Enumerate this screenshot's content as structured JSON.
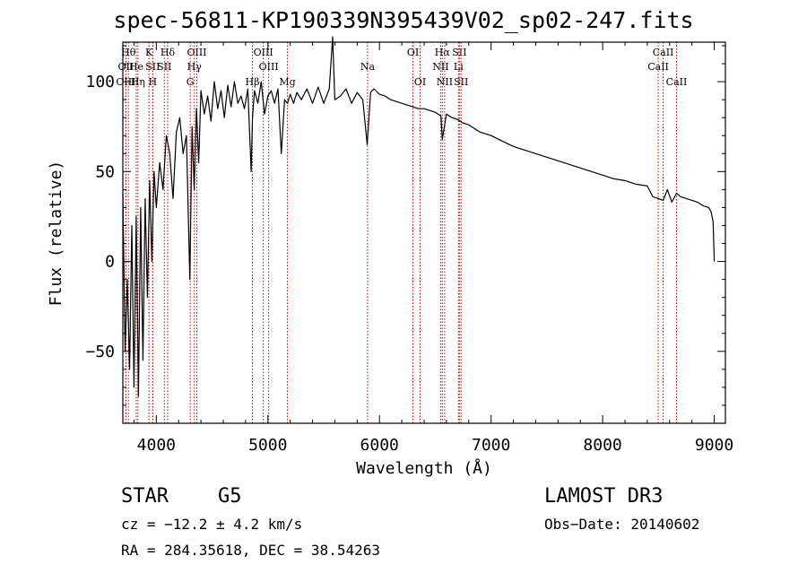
{
  "title": "spec-56811-KP190339N395439V02_sp02-247.fits",
  "info": {
    "object_class": "STAR",
    "subclass": "G5",
    "survey": "LAMOST DR3",
    "cz": "cz = −12.2 ± 4.2 km/s",
    "obs_date": "Obs−Date: 20140602",
    "coords": "RA = 284.35618, DEC =  38.54263"
  },
  "chart_data": {
    "type": "line",
    "title": "spec-56811-KP190339N395439V02_sp02-247.fits",
    "xlabel": "Wavelength (Å)",
    "ylabel": "Flux (relative)",
    "xlim": [
      3700,
      9100
    ],
    "ylim": [
      -90,
      122
    ],
    "xticks": [
      4000,
      5000,
      6000,
      7000,
      8000,
      9000
    ],
    "xtick_labels": [
      "4000",
      "5000",
      "6000",
      "7000",
      "8000",
      "9000"
    ],
    "yticks": [
      -50,
      0,
      50,
      100
    ],
    "ytick_labels": [
      "−50",
      "0",
      "50",
      "100"
    ],
    "line_color": "#000000",
    "marker_color": "#cc0000",
    "series": [
      {
        "name": "flux",
        "x": [
          3700,
          3720,
          3740,
          3760,
          3780,
          3800,
          3820,
          3840,
          3860,
          3880,
          3900,
          3920,
          3940,
          3960,
          3980,
          4000,
          4030,
          4060,
          4090,
          4120,
          4150,
          4180,
          4210,
          4240,
          4270,
          4300,
          4320,
          4340,
          4360,
          4380,
          4400,
          4430,
          4460,
          4490,
          4520,
          4550,
          4580,
          4610,
          4640,
          4670,
          4700,
          4730,
          4760,
          4790,
          4820,
          4850,
          4862,
          4880,
          4910,
          4940,
          4970,
          5000,
          5030,
          5060,
          5090,
          5120,
          5150,
          5175,
          5200,
          5230,
          5260,
          5300,
          5350,
          5400,
          5450,
          5500,
          5550,
          5580,
          5600,
          5650,
          5700,
          5750,
          5800,
          5850,
          5890,
          5920,
          5950,
          6000,
          6050,
          6100,
          6150,
          6200,
          6250,
          6300,
          6350,
          6400,
          6450,
          6500,
          6550,
          6563,
          6600,
          6650,
          6700,
          6750,
          6800,
          6850,
          6900,
          6950,
          7000,
          7100,
          7200,
          7300,
          7400,
          7500,
          7600,
          7700,
          7800,
          7900,
          8000,
          8100,
          8200,
          8300,
          8400,
          8450,
          8500,
          8542,
          8580,
          8620,
          8662,
          8700,
          8750,
          8800,
          8850,
          8900,
          8950,
          8970,
          8990,
          9000
        ],
        "values": [
          38,
          -50,
          -10,
          -60,
          20,
          -70,
          25,
          -75,
          30,
          -55,
          35,
          -20,
          45,
          0,
          50,
          30,
          55,
          40,
          70,
          60,
          35,
          72,
          80,
          60,
          70,
          -10,
          75,
          40,
          85,
          55,
          95,
          82,
          92,
          78,
          100,
          85,
          95,
          80,
          98,
          86,
          100,
          88,
          92,
          85,
          96,
          50,
          80,
          95,
          88,
          100,
          82,
          92,
          95,
          88,
          96,
          60,
          90,
          88,
          93,
          88,
          94,
          90,
          96,
          88,
          97,
          88,
          96,
          125,
          90,
          92,
          96,
          88,
          94,
          90,
          65,
          94,
          96,
          93,
          92,
          90,
          89,
          88,
          87,
          86,
          85,
          85,
          84,
          83,
          81,
          68,
          82,
          80,
          79,
          77,
          76,
          74,
          72,
          71,
          70,
          67,
          64,
          62,
          60,
          58,
          56,
          54,
          52,
          50,
          48,
          46,
          45,
          43,
          42,
          36,
          35,
          34,
          40,
          33,
          38,
          36,
          35,
          34,
          33,
          31,
          30,
          28,
          22,
          0
        ]
      }
    ],
    "line_markers": [
      {
        "label": "Hθ",
        "wavelength": 3750,
        "row": 1
      },
      {
        "label": "OII",
        "wavelength": 3727,
        "row": 2
      },
      {
        "label": "OIII",
        "wavelength": 3727,
        "row": 3
      },
      {
        "label": "He",
        "wavelength": 3820,
        "row": 2
      },
      {
        "label": "Hη",
        "wavelength": 3835,
        "row": 3
      },
      {
        "label": "K",
        "wavelength": 3934,
        "row": 1
      },
      {
        "label": "SII",
        "wavelength": 3968,
        "row": 2
      },
      {
        "label": "H",
        "wavelength": 3968,
        "row": 3
      },
      {
        "label": "Hδ",
        "wavelength": 4102,
        "row": 1
      },
      {
        "label": "SII",
        "wavelength": 4072,
        "row": 2
      },
      {
        "label": "OIII",
        "wavelength": 4363,
        "row": 1
      },
      {
        "label": "Hγ",
        "wavelength": 4341,
        "row": 2
      },
      {
        "label": "G",
        "wavelength": 4304,
        "row": 3
      },
      {
        "label": "OIII",
        "wavelength": 4959,
        "row": 1
      },
      {
        "label": "OIII",
        "wavelength": 5007,
        "row": 2
      },
      {
        "label": "Hβ",
        "wavelength": 4861,
        "row": 3
      },
      {
        "label": "Mg",
        "wavelength": 5175,
        "row": 3
      },
      {
        "label": "Na",
        "wavelength": 5893,
        "row": 2
      },
      {
        "label": "OI",
        "wavelength": 6300,
        "row": 1
      },
      {
        "label": "OI",
        "wavelength": 6364,
        "row": 3
      },
      {
        "label": "Hα",
        "wavelength": 6563,
        "row": 1
      },
      {
        "label": "NII",
        "wavelength": 6548,
        "row": 2
      },
      {
        "label": "NII",
        "wavelength": 6584,
        "row": 3
      },
      {
        "label": "SII",
        "wavelength": 6716,
        "row": 1
      },
      {
        "label": "Li",
        "wavelength": 6708,
        "row": 2
      },
      {
        "label": "SII",
        "wavelength": 6731,
        "row": 3
      },
      {
        "label": "CaII",
        "wavelength": 8542,
        "row": 1
      },
      {
        "label": "CaII",
        "wavelength": 8498,
        "row": 2
      },
      {
        "label": "CaII",
        "wavelength": 8662,
        "row": 3
      }
    ]
  }
}
